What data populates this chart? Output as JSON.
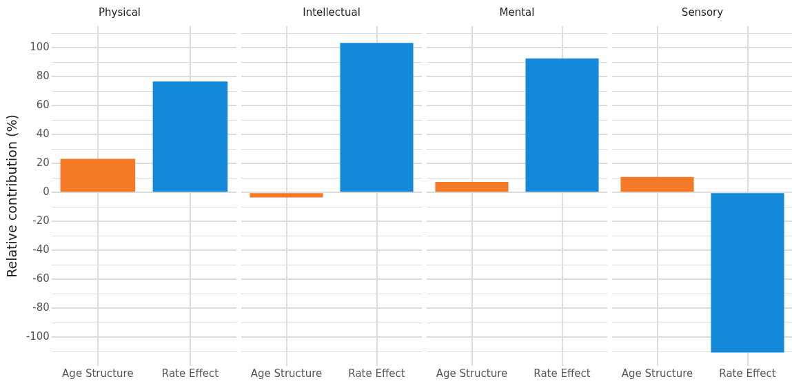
{
  "chart_data": [
    {
      "type": "bar",
      "title": "Physical",
      "ylabel": "Relative contribution (%)",
      "categories": [
        "Age Structure",
        "Rate Effect"
      ],
      "values": [
        23.3,
        76.7
      ],
      "colors": [
        "#f47a27",
        "#1589d9"
      ],
      "ylim": [
        -120,
        115
      ],
      "yticks": [
        {
          "value": -110,
          "label": null
        },
        -100,
        {
          "value": -90,
          "label": null
        },
        -80,
        {
          "value": -70,
          "label": null
        },
        -60,
        {
          "value": -50,
          "label": null
        },
        -40,
        {
          "value": -30,
          "label": null
        },
        -20,
        {
          "value": -10,
          "label": null
        },
        0,
        {
          "value": 10,
          "label": null
        },
        20,
        {
          "value": 30,
          "label": null
        },
        40,
        {
          "value": 50,
          "label": null
        },
        60,
        {
          "value": 70,
          "label": null
        },
        80,
        {
          "value": 90,
          "label": null
        },
        100,
        {
          "value": 110,
          "label": null
        }
      ],
      "grid": true
    },
    {
      "type": "bar",
      "title": "Intellectual",
      "categories": [
        "Age Structure",
        "Rate Effect"
      ],
      "values": [
        -3.5,
        103.5
      ],
      "colors": [
        "#f47a27",
        "#1589d9"
      ],
      "ylim": [
        -120,
        115
      ],
      "yticks": [
        {
          "value": -110,
          "label": null
        },
        -100,
        {
          "value": -90,
          "label": null
        },
        -80,
        {
          "value": -70,
          "label": null
        },
        -60,
        {
          "value": -50,
          "label": null
        },
        -40,
        {
          "value": -30,
          "label": null
        },
        -20,
        {
          "value": -10,
          "label": null
        },
        0,
        {
          "value": 10,
          "label": null
        },
        20,
        {
          "value": 30,
          "label": null
        },
        40,
        {
          "value": 50,
          "label": null
        },
        60,
        {
          "value": 70,
          "label": null
        },
        80,
        {
          "value": 90,
          "label": null
        },
        100,
        {
          "value": 110,
          "label": null
        }
      ],
      "grid": true,
      "tick_labels": "x"
    },
    {
      "type": "bar",
      "title": "Mental",
      "categories": [
        "Age Structure",
        "Rate Effect"
      ],
      "values": [
        7.3,
        92.7
      ],
      "colors": [
        "#f47a27",
        "#1589d9"
      ],
      "ylim": [
        -120,
        115
      ],
      "yticks": [
        {
          "value": -110,
          "label": null
        },
        -100,
        {
          "value": -90,
          "label": null
        },
        -80,
        {
          "value": -70,
          "label": null
        },
        -60,
        {
          "value": -50,
          "label": null
        },
        -40,
        {
          "value": -30,
          "label": null
        },
        -20,
        {
          "value": -10,
          "label": null
        },
        0,
        {
          "value": 10,
          "label": null
        },
        20,
        {
          "value": 30,
          "label": null
        },
        40,
        {
          "value": 50,
          "label": null
        },
        60,
        {
          "value": 70,
          "label": null
        },
        80,
        {
          "value": 90,
          "label": null
        },
        100,
        {
          "value": 110,
          "label": null
        }
      ],
      "grid": true,
      "tick_labels": "x"
    },
    {
      "type": "bar",
      "title": "Sensory",
      "categories": [
        "Age Structure",
        "Rate Effect"
      ],
      "values": [
        10.7,
        -110.7
      ],
      "colors": [
        "#f47a27",
        "#1589d9"
      ],
      "ylim": [
        -120,
        115
      ],
      "yticks": [
        {
          "value": -110,
          "label": null
        },
        -100,
        {
          "value": -90,
          "label": null
        },
        -80,
        {
          "value": -70,
          "label": null
        },
        -60,
        {
          "value": -50,
          "label": null
        },
        -40,
        {
          "value": -30,
          "label": null
        },
        -20,
        {
          "value": -10,
          "label": null
        },
        0,
        {
          "value": 10,
          "label": null
        },
        20,
        {
          "value": 30,
          "label": null
        },
        40,
        {
          "value": 50,
          "label": null
        },
        60,
        {
          "value": 70,
          "label": null
        },
        80,
        {
          "value": 90,
          "label": null
        },
        100,
        {
          "value": 110,
          "label": null
        }
      ],
      "grid": true,
      "tick_labels": "x"
    }
  ]
}
